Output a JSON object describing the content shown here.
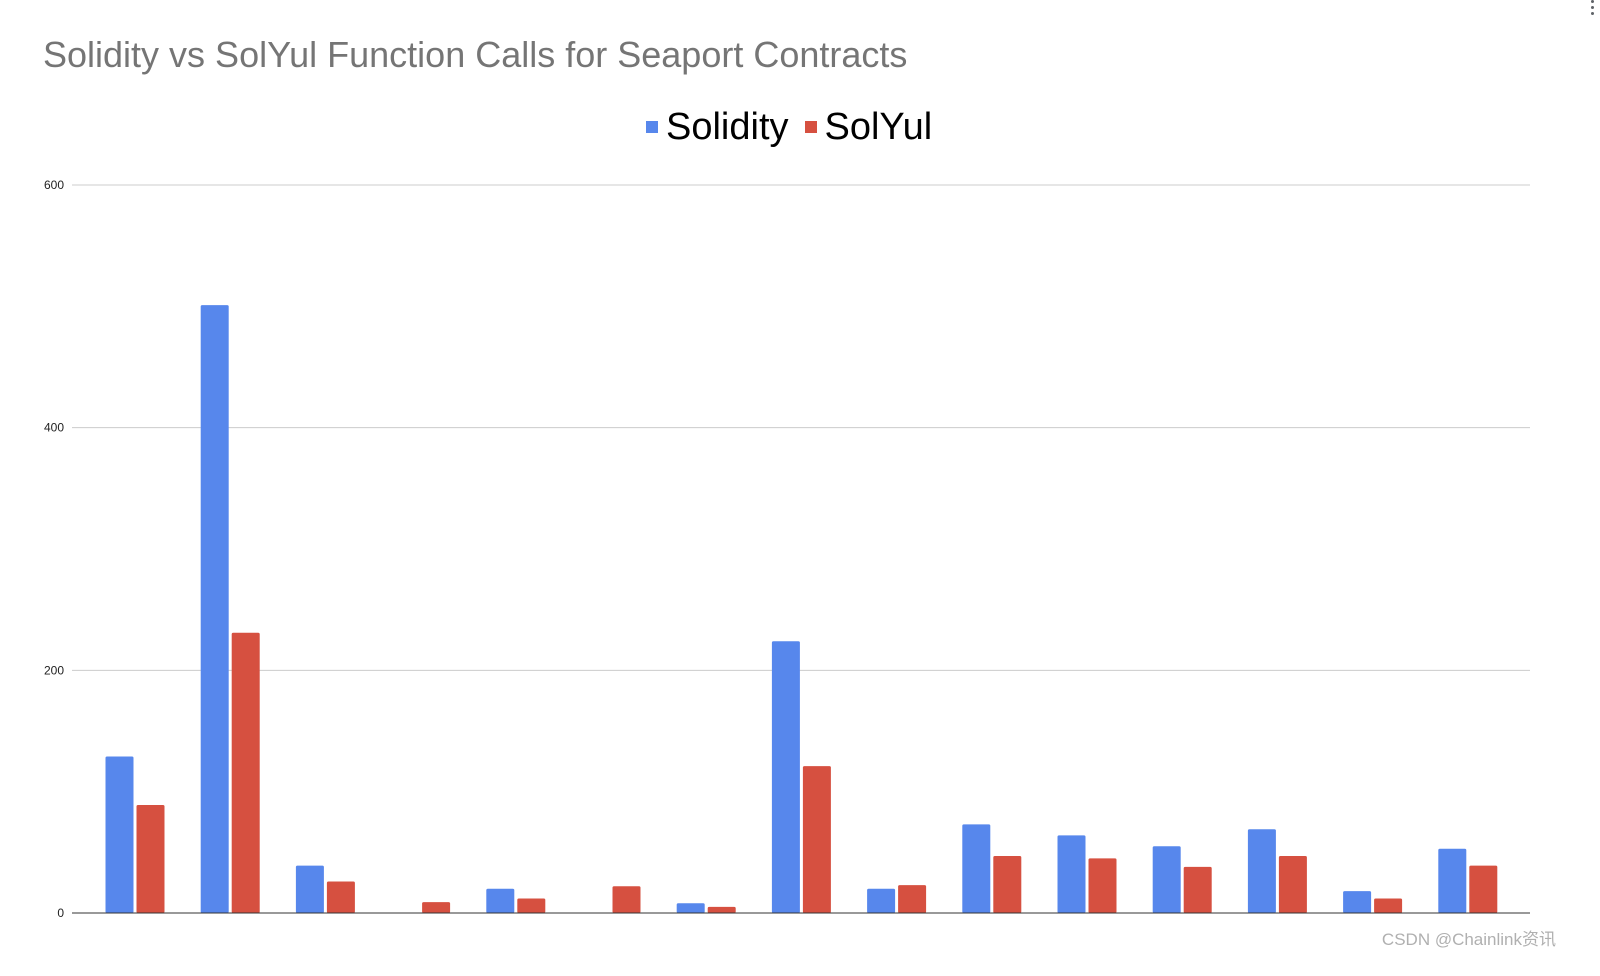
{
  "chart_data": {
    "type": "bar",
    "title": "Solidity vs SolYul Function Calls for Seaport Contracts",
    "xlabel": "",
    "ylabel": "",
    "ylim": [
      0,
      600
    ],
    "yticks": [
      "0",
      "200",
      "400",
      "600"
    ],
    "grid": true,
    "legend_position": "top-center",
    "categories": [
      "",
      "",
      "",
      "",
      "",
      "",
      "",
      "",
      "",
      "",
      "",
      "",
      "",
      "",
      ""
    ],
    "series": [
      {
        "name": "Solidity",
        "color": "#5787EC",
        "values": [
          129,
          501,
          39,
          0,
          20,
          0,
          8,
          224,
          20,
          73,
          64,
          55,
          69,
          18,
          53
        ]
      },
      {
        "name": "SolYul",
        "color": "#D65040",
        "values": [
          89,
          231,
          26,
          9,
          12,
          22,
          5,
          121,
          23,
          47,
          45,
          38,
          47,
          12,
          39
        ]
      }
    ]
  },
  "watermark": "CSDN @Chainlink资讯",
  "icons": {
    "menu": "more-vert-icon"
  }
}
